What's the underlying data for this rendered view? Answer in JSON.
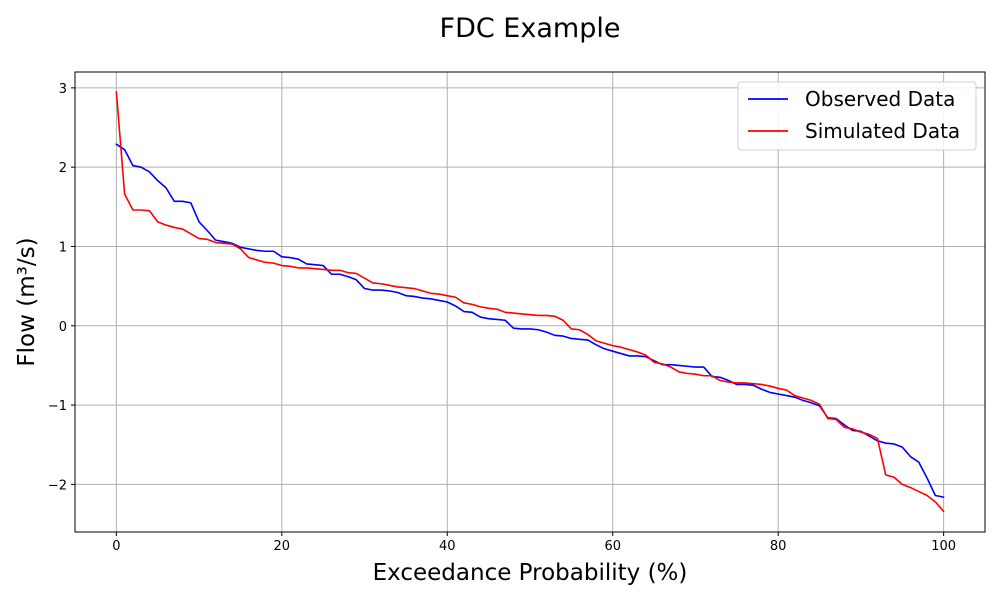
{
  "chart_data": {
    "type": "line",
    "title": "FDC Example",
    "xlabel": "Exceedance Probability (%)",
    "ylabel": "Flow (m³/s)",
    "xlim": [
      -5,
      105
    ],
    "ylim": [
      -2.6,
      3.2
    ],
    "xticks": [
      0,
      20,
      40,
      60,
      80,
      100
    ],
    "yticks": [
      -2,
      -1,
      0,
      1,
      2,
      3
    ],
    "xtick_labels": [
      "0",
      "20",
      "40",
      "60",
      "80",
      "100"
    ],
    "ytick_labels": [
      "−2",
      "−1",
      "0",
      "1",
      "2",
      "3"
    ],
    "grid": true,
    "legend_position": "top-right",
    "series": [
      {
        "name": "Observed Data",
        "color": "#0000ff",
        "points": [
          [
            0,
            2.29
          ],
          [
            1,
            2.22
          ],
          [
            2,
            2.02
          ],
          [
            3,
            2.0
          ],
          [
            4,
            1.94
          ],
          [
            5,
            1.83
          ],
          [
            6,
            1.74
          ],
          [
            7,
            1.57
          ],
          [
            8,
            1.57
          ],
          [
            9,
            1.55
          ],
          [
            10,
            1.31
          ],
          [
            11,
            1.2
          ],
          [
            12,
            1.08
          ],
          [
            13,
            1.06
          ],
          [
            14,
            1.04
          ],
          [
            15,
            0.99
          ],
          [
            16,
            0.97
          ],
          [
            17,
            0.95
          ],
          [
            18,
            0.94
          ],
          [
            19,
            0.94
          ],
          [
            20,
            0.87
          ],
          [
            21,
            0.86
          ],
          [
            22,
            0.84
          ],
          [
            23,
            0.78
          ],
          [
            24,
            0.77
          ],
          [
            25,
            0.76
          ],
          [
            26,
            0.65
          ],
          [
            27,
            0.65
          ],
          [
            28,
            0.62
          ],
          [
            29,
            0.58
          ],
          [
            30,
            0.47
          ],
          [
            31,
            0.45
          ],
          [
            32,
            0.45
          ],
          [
            33,
            0.44
          ],
          [
            34,
            0.42
          ],
          [
            35,
            0.38
          ],
          [
            36,
            0.37
          ],
          [
            37,
            0.35
          ],
          [
            38,
            0.34
          ],
          [
            39,
            0.32
          ],
          [
            40,
            0.3
          ],
          [
            41,
            0.25
          ],
          [
            42,
            0.18
          ],
          [
            43,
            0.17
          ],
          [
            44,
            0.11
          ],
          [
            45,
            0.09
          ],
          [
            46,
            0.08
          ],
          [
            47,
            0.07
          ],
          [
            48,
            -0.03
          ],
          [
            49,
            -0.04
          ],
          [
            50,
            -0.04
          ],
          [
            51,
            -0.05
          ],
          [
            52,
            -0.08
          ],
          [
            53,
            -0.12
          ],
          [
            54,
            -0.13
          ],
          [
            55,
            -0.16
          ],
          [
            56,
            -0.17
          ],
          [
            57,
            -0.18
          ],
          [
            58,
            -0.24
          ],
          [
            59,
            -0.29
          ],
          [
            60,
            -0.32
          ],
          [
            61,
            -0.35
          ],
          [
            62,
            -0.38
          ],
          [
            63,
            -0.38
          ],
          [
            64,
            -0.39
          ],
          [
            65,
            -0.44
          ],
          [
            66,
            -0.49
          ],
          [
            67,
            -0.49
          ],
          [
            68,
            -0.5
          ],
          [
            69,
            -0.51
          ],
          [
            70,
            -0.52
          ],
          [
            71,
            -0.52
          ],
          [
            72,
            -0.64
          ],
          [
            73,
            -0.65
          ],
          [
            74,
            -0.69
          ],
          [
            75,
            -0.74
          ],
          [
            76,
            -0.74
          ],
          [
            77,
            -0.75
          ],
          [
            78,
            -0.8
          ],
          [
            79,
            -0.84
          ],
          [
            80,
            -0.86
          ],
          [
            81,
            -0.88
          ],
          [
            82,
            -0.9
          ],
          [
            83,
            -0.94
          ],
          [
            84,
            -0.97
          ],
          [
            85,
            -1.01
          ],
          [
            86,
            -1.16
          ],
          [
            87,
            -1.17
          ],
          [
            88,
            -1.25
          ],
          [
            89,
            -1.32
          ],
          [
            90,
            -1.33
          ],
          [
            91,
            -1.39
          ],
          [
            92,
            -1.45
          ],
          [
            93,
            -1.48
          ],
          [
            94,
            -1.49
          ],
          [
            95,
            -1.53
          ],
          [
            96,
            -1.65
          ],
          [
            97,
            -1.72
          ],
          [
            98,
            -1.92
          ],
          [
            99,
            -2.14
          ],
          [
            100,
            -2.16
          ]
        ]
      },
      {
        "name": "Simulated Data",
        "color": "#ff0000",
        "points": [
          [
            0,
            2.95
          ],
          [
            1,
            1.66
          ],
          [
            2,
            1.46
          ],
          [
            3,
            1.46
          ],
          [
            4,
            1.45
          ],
          [
            5,
            1.31
          ],
          [
            6,
            1.27
          ],
          [
            7,
            1.24
          ],
          [
            8,
            1.22
          ],
          [
            9,
            1.16
          ],
          [
            10,
            1.1
          ],
          [
            11,
            1.09
          ],
          [
            12,
            1.05
          ],
          [
            13,
            1.04
          ],
          [
            14,
            1.03
          ],
          [
            15,
            0.97
          ],
          [
            16,
            0.86
          ],
          [
            17,
            0.83
          ],
          [
            18,
            0.8
          ],
          [
            19,
            0.79
          ],
          [
            20,
            0.76
          ],
          [
            21,
            0.75
          ],
          [
            22,
            0.73
          ],
          [
            23,
            0.73
          ],
          [
            24,
            0.72
          ],
          [
            25,
            0.71
          ],
          [
            26,
            0.7
          ],
          [
            27,
            0.7
          ],
          [
            28,
            0.67
          ],
          [
            29,
            0.66
          ],
          [
            30,
            0.6
          ],
          [
            31,
            0.54
          ],
          [
            32,
            0.53
          ],
          [
            33,
            0.51
          ],
          [
            34,
            0.49
          ],
          [
            35,
            0.48
          ],
          [
            36,
            0.47
          ],
          [
            37,
            0.44
          ],
          [
            38,
            0.41
          ],
          [
            39,
            0.4
          ],
          [
            40,
            0.38
          ],
          [
            41,
            0.36
          ],
          [
            42,
            0.29
          ],
          [
            43,
            0.27
          ],
          [
            44,
            0.24
          ],
          [
            45,
            0.22
          ],
          [
            46,
            0.21
          ],
          [
            47,
            0.17
          ],
          [
            48,
            0.16
          ],
          [
            49,
            0.15
          ],
          [
            50,
            0.14
          ],
          [
            51,
            0.13
          ],
          [
            52,
            0.13
          ],
          [
            53,
            0.12
          ],
          [
            54,
            0.07
          ],
          [
            55,
            -0.04
          ],
          [
            56,
            -0.05
          ],
          [
            57,
            -0.11
          ],
          [
            58,
            -0.19
          ],
          [
            59,
            -0.22
          ],
          [
            60,
            -0.25
          ],
          [
            61,
            -0.27
          ],
          [
            62,
            -0.3
          ],
          [
            63,
            -0.33
          ],
          [
            64,
            -0.37
          ],
          [
            65,
            -0.46
          ],
          [
            66,
            -0.48
          ],
          [
            67,
            -0.52
          ],
          [
            68,
            -0.58
          ],
          [
            69,
            -0.6
          ],
          [
            70,
            -0.61
          ],
          [
            71,
            -0.63
          ],
          [
            72,
            -0.63
          ],
          [
            73,
            -0.69
          ],
          [
            74,
            -0.71
          ],
          [
            75,
            -0.72
          ],
          [
            76,
            -0.72
          ],
          [
            77,
            -0.73
          ],
          [
            78,
            -0.74
          ],
          [
            79,
            -0.76
          ],
          [
            80,
            -0.79
          ],
          [
            81,
            -0.81
          ],
          [
            82,
            -0.88
          ],
          [
            83,
            -0.91
          ],
          [
            84,
            -0.94
          ],
          [
            85,
            -0.99
          ],
          [
            86,
            -1.17
          ],
          [
            87,
            -1.18
          ],
          [
            88,
            -1.28
          ],
          [
            89,
            -1.3
          ],
          [
            90,
            -1.34
          ],
          [
            91,
            -1.37
          ],
          [
            92,
            -1.42
          ],
          [
            93,
            -1.88
          ],
          [
            94,
            -1.91
          ],
          [
            95,
            -2.0
          ],
          [
            96,
            -2.04
          ],
          [
            97,
            -2.09
          ],
          [
            98,
            -2.14
          ],
          [
            99,
            -2.22
          ],
          [
            100,
            -2.34
          ]
        ]
      }
    ]
  }
}
